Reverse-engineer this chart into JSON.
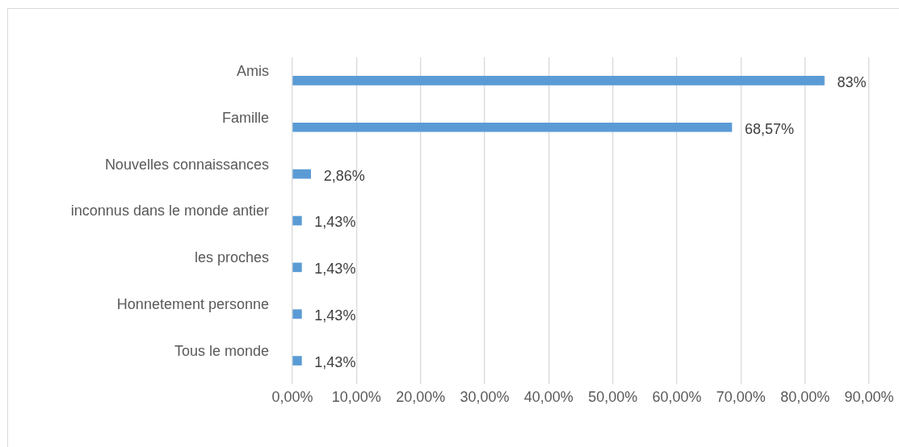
{
  "chart_data": {
    "type": "bar",
    "orientation": "horizontal",
    "categories": [
      "Amis",
      "Famille",
      "Nouvelles connaissances",
      "inconnus dans le monde antier",
      "les proches",
      "Honnetement personne",
      "Tous le monde"
    ],
    "values": [
      83,
      68.57,
      2.86,
      1.43,
      1.43,
      1.43,
      1.43
    ],
    "value_labels": [
      "83%",
      "68,57%",
      "2,86%",
      "1,43%",
      "1,43%",
      "1,43%",
      "1,43%"
    ],
    "color": "#5b9bd5",
    "xlim": [
      0,
      90
    ],
    "xticks": [
      {
        "value": 0,
        "label": "0,00%"
      },
      {
        "value": 10,
        "label": "10,00%"
      },
      {
        "value": 20,
        "label": "20,00%"
      },
      {
        "value": 30,
        "label": "30,00%"
      },
      {
        "value": 40,
        "label": "40,00%"
      },
      {
        "value": 50,
        "label": "50,00%"
      },
      {
        "value": 60,
        "label": "60,00%"
      },
      {
        "value": 70,
        "label": "70,00%"
      },
      {
        "value": 80,
        "label": "80,00%"
      },
      {
        "value": 90,
        "label": "90,00%"
      }
    ],
    "grid": "x"
  }
}
